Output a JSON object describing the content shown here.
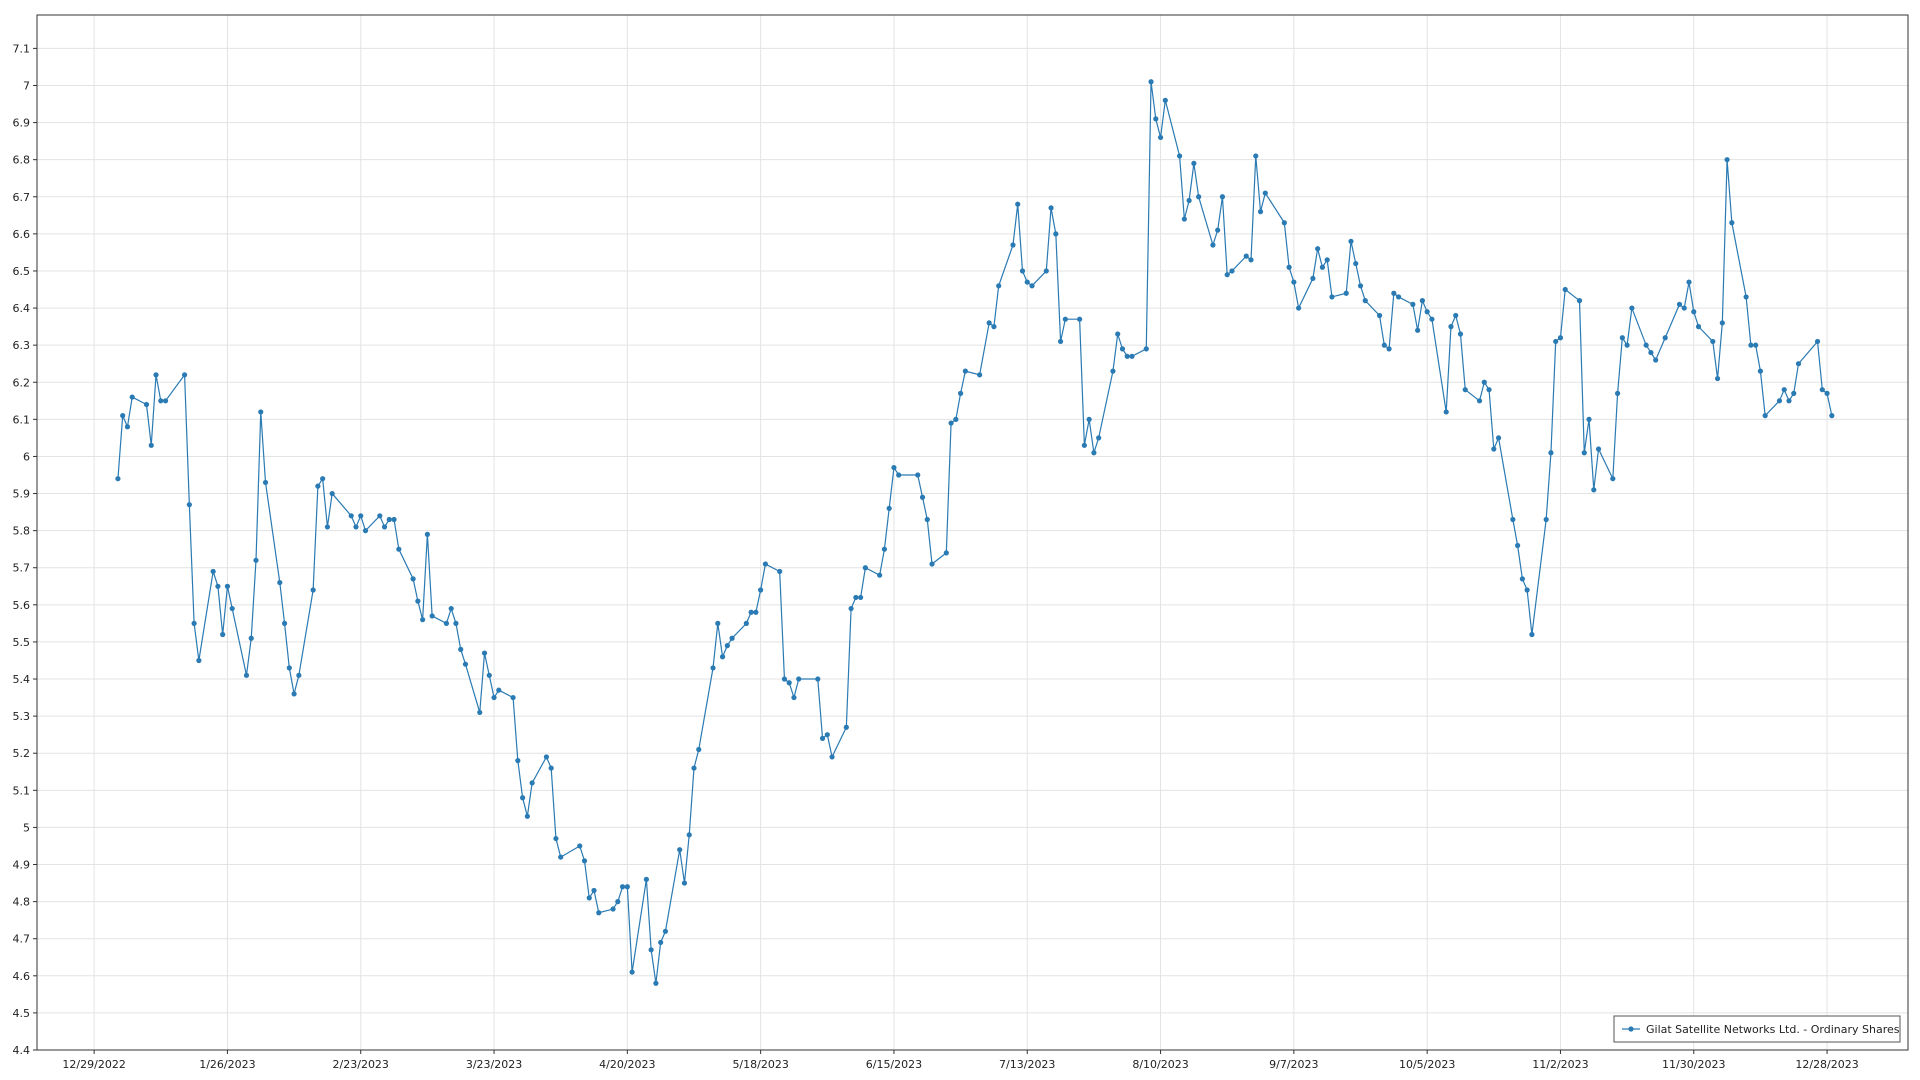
{
  "chart_data": {
    "type": "line",
    "x": [
      "1/3/2023",
      "1/4/2023",
      "1/5/2023",
      "1/6/2023",
      "1/9/2023",
      "1/10/2023",
      "1/11/2023",
      "1/12/2023",
      "1/13/2023",
      "1/17/2023",
      "1/18/2023",
      "1/19/2023",
      "1/20/2023",
      "1/23/2023",
      "1/24/2023",
      "1/25/2023",
      "1/26/2023",
      "1/27/2023",
      "1/30/2023",
      "1/31/2023",
      "2/1/2023",
      "2/2/2023",
      "2/3/2023",
      "2/6/2023",
      "2/7/2023",
      "2/8/2023",
      "2/9/2023",
      "2/10/2023",
      "2/13/2023",
      "2/14/2023",
      "2/15/2023",
      "2/16/2023",
      "2/17/2023",
      "2/21/2023",
      "2/22/2023",
      "2/23/2023",
      "2/24/2023",
      "2/27/2023",
      "2/28/2023",
      "3/1/2023",
      "3/2/2023",
      "3/3/2023",
      "3/6/2023",
      "3/7/2023",
      "3/8/2023",
      "3/9/2023",
      "3/10/2023",
      "3/13/2023",
      "3/14/2023",
      "3/15/2023",
      "3/16/2023",
      "3/17/2023",
      "3/20/2023",
      "3/21/2023",
      "3/22/2023",
      "3/23/2023",
      "3/24/2023",
      "3/27/2023",
      "3/28/2023",
      "3/29/2023",
      "3/30/2023",
      "3/31/2023",
      "4/3/2023",
      "4/4/2023",
      "4/5/2023",
      "4/6/2023",
      "4/10/2023",
      "4/11/2023",
      "4/12/2023",
      "4/13/2023",
      "4/14/2023",
      "4/17/2023",
      "4/18/2023",
      "4/19/2023",
      "4/20/2023",
      "4/21/2023",
      "4/24/2023",
      "4/25/2023",
      "4/26/2023",
      "4/27/2023",
      "4/28/2023",
      "5/1/2023",
      "5/2/2023",
      "5/3/2023",
      "5/4/2023",
      "5/5/2023",
      "5/8/2023",
      "5/9/2023",
      "5/10/2023",
      "5/11/2023",
      "5/12/2023",
      "5/15/2023",
      "5/16/2023",
      "5/17/2023",
      "5/18/2023",
      "5/19/2023",
      "5/22/2023",
      "5/23/2023",
      "5/24/2023",
      "5/25/2023",
      "5/26/2023",
      "5/30/2023",
      "5/31/2023",
      "6/1/2023",
      "6/2/2023",
      "6/5/2023",
      "6/6/2023",
      "6/7/2023",
      "6/8/2023",
      "6/9/2023",
      "6/12/2023",
      "6/13/2023",
      "6/14/2023",
      "6/15/2023",
      "6/16/2023",
      "6/20/2023",
      "6/21/2023",
      "6/22/2023",
      "6/23/2023",
      "6/26/2023",
      "6/27/2023",
      "6/28/2023",
      "6/29/2023",
      "6/30/2023",
      "7/3/2023",
      "7/5/2023",
      "7/6/2023",
      "7/7/2023",
      "7/10/2023",
      "7/11/2023",
      "7/12/2023",
      "7/13/2023",
      "7/14/2023",
      "7/17/2023",
      "7/18/2023",
      "7/19/2023",
      "7/20/2023",
      "7/21/2023",
      "7/24/2023",
      "7/25/2023",
      "7/26/2023",
      "7/27/2023",
      "7/28/2023",
      "7/31/2023",
      "8/1/2023",
      "8/2/2023",
      "8/3/2023",
      "8/4/2023",
      "8/7/2023",
      "8/8/2023",
      "8/9/2023",
      "8/10/2023",
      "8/11/2023",
      "8/14/2023",
      "8/15/2023",
      "8/16/2023",
      "8/17/2023",
      "8/18/2023",
      "8/21/2023",
      "8/22/2023",
      "8/23/2023",
      "8/24/2023",
      "8/25/2023",
      "8/28/2023",
      "8/29/2023",
      "8/30/2023",
      "8/31/2023",
      "9/1/2023",
      "9/5/2023",
      "9/6/2023",
      "9/7/2023",
      "9/8/2023",
      "9/11/2023",
      "9/12/2023",
      "9/13/2023",
      "9/14/2023",
      "9/15/2023",
      "9/18/2023",
      "9/19/2023",
      "9/20/2023",
      "9/21/2023",
      "9/22/2023",
      "9/25/2023",
      "9/26/2023",
      "9/27/2023",
      "9/28/2023",
      "9/29/2023",
      "10/2/2023",
      "10/3/2023",
      "10/4/2023",
      "10/5/2023",
      "10/6/2023",
      "10/9/2023",
      "10/10/2023",
      "10/11/2023",
      "10/12/2023",
      "10/13/2023",
      "10/16/2023",
      "10/17/2023",
      "10/18/2023",
      "10/19/2023",
      "10/20/2023",
      "10/23/2023",
      "10/24/2023",
      "10/25/2023",
      "10/26/2023",
      "10/27/2023",
      "10/30/2023",
      "10/31/2023",
      "11/1/2023",
      "11/2/2023",
      "11/3/2023",
      "11/6/2023",
      "11/7/2023",
      "11/8/2023",
      "11/9/2023",
      "11/10/2023",
      "11/13/2023",
      "11/14/2023",
      "11/15/2023",
      "11/16/2023",
      "11/17/2023",
      "11/20/2023",
      "11/21/2023",
      "11/22/2023",
      "11/24/2023",
      "11/27/2023",
      "11/28/2023",
      "11/29/2023",
      "11/30/2023",
      "12/1/2023",
      "12/4/2023",
      "12/5/2023",
      "12/6/2023",
      "12/7/2023",
      "12/8/2023",
      "12/11/2023",
      "12/12/2023",
      "12/13/2023",
      "12/14/2023",
      "12/15/2023",
      "12/18/2023",
      "12/19/2023",
      "12/20/2023",
      "12/21/2023",
      "12/22/2023",
      "12/26/2023",
      "12/27/2023",
      "12/28/2023",
      "12/29/2023"
    ],
    "series": [
      {
        "name": "Gilat Satellite Networks Ltd. - Ordinary Shares",
        "color": "#2a7ab3",
        "values": [
          5.94,
          6.11,
          6.08,
          6.16,
          6.14,
          6.03,
          6.22,
          6.15,
          6.15,
          6.22,
          5.87,
          5.55,
          5.45,
          5.69,
          5.65,
          5.52,
          5.65,
          5.59,
          5.41,
          5.51,
          5.72,
          6.12,
          5.93,
          5.66,
          5.55,
          5.43,
          5.36,
          5.41,
          5.64,
          5.92,
          5.94,
          5.81,
          5.9,
          5.84,
          5.81,
          5.84,
          5.8,
          5.84,
          5.81,
          5.83,
          5.83,
          5.75,
          5.67,
          5.61,
          5.56,
          5.79,
          5.57,
          5.55,
          5.59,
          5.55,
          5.48,
          5.44,
          5.31,
          5.47,
          5.41,
          5.35,
          5.37,
          5.35,
          5.18,
          5.08,
          5.03,
          5.12,
          5.19,
          5.16,
          4.97,
          4.92,
          4.95,
          4.91,
          4.81,
          4.83,
          4.77,
          4.78,
          4.8,
          4.84,
          4.84,
          4.61,
          4.86,
          4.67,
          4.58,
          4.69,
          4.72,
          4.94,
          4.85,
          4.98,
          5.16,
          5.21,
          5.43,
          5.55,
          5.46,
          5.49,
          5.51,
          5.55,
          5.58,
          5.58,
          5.64,
          5.71,
          5.69,
          5.4,
          5.39,
          5.35,
          5.4,
          5.4,
          5.24,
          5.25,
          5.19,
          5.27,
          5.59,
          5.62,
          5.62,
          5.7,
          5.68,
          5.75,
          5.86,
          5.97,
          5.95,
          5.95,
          5.89,
          5.83,
          5.71,
          5.74,
          6.09,
          6.1,
          6.17,
          6.23,
          6.22,
          6.36,
          6.35,
          6.46,
          6.57,
          6.68,
          6.5,
          6.47,
          6.46,
          6.5,
          6.67,
          6.6,
          6.31,
          6.37,
          6.37,
          6.03,
          6.1,
          6.01,
          6.05,
          6.23,
          6.33,
          6.29,
          6.27,
          6.27,
          6.29,
          7.01,
          6.91,
          6.86,
          6.96,
          6.81,
          6.64,
          6.69,
          6.79,
          6.7,
          6.57,
          6.61,
          6.7,
          6.49,
          6.5,
          6.54,
          6.53,
          6.81,
          6.66,
          6.71,
          6.63,
          6.51,
          6.47,
          6.4,
          6.48,
          6.56,
          6.51,
          6.53,
          6.43,
          6.44,
          6.58,
          6.52,
          6.46,
          6.42,
          6.38,
          6.3,
          6.29,
          6.44,
          6.43,
          6.41,
          6.34,
          6.42,
          6.39,
          6.37,
          6.12,
          6.35,
          6.38,
          6.33,
          6.18,
          6.15,
          6.2,
          6.18,
          6.02,
          6.05,
          5.83,
          5.76,
          5.67,
          5.64,
          5.52,
          5.83,
          6.01,
          6.31,
          6.32,
          6.45,
          6.42,
          6.01,
          6.1,
          5.91,
          6.02,
          5.94,
          6.17,
          6.32,
          6.3,
          6.4,
          6.3,
          6.28,
          6.26,
          6.32,
          6.41,
          6.4,
          6.47,
          6.39,
          6.35,
          6.31,
          6.21,
          6.36,
          6.8,
          6.63,
          6.43,
          6.3,
          6.3,
          6.23,
          6.11,
          6.15,
          6.18,
          6.15,
          6.17,
          6.25,
          6.31,
          6.18,
          6.17,
          6.11
        ]
      }
    ],
    "xlim": [
      "12/17/2022",
      "1/14/2024"
    ],
    "xticks": [
      "12/29/2022",
      "1/26/2023",
      "2/23/2023",
      "3/23/2023",
      "4/20/2023",
      "5/18/2023",
      "6/15/2023",
      "7/13/2023",
      "8/10/2023",
      "9/7/2023",
      "10/5/2023",
      "11/2/2023",
      "11/30/2023",
      "12/28/2023"
    ],
    "ylim": [
      4.4,
      7.19
    ],
    "yticks": [
      4.4,
      4.5,
      4.6,
      4.7,
      4.8,
      4.9,
      5,
      5.1,
      5.2,
      5.3,
      5.4,
      5.5,
      5.6,
      5.7,
      5.8,
      5.9,
      6,
      6.1,
      6.2,
      6.3,
      6.4,
      6.5,
      6.6,
      6.7,
      6.8,
      6.9,
      7,
      7.1
    ],
    "grid": true,
    "legend": "bottom-right"
  }
}
